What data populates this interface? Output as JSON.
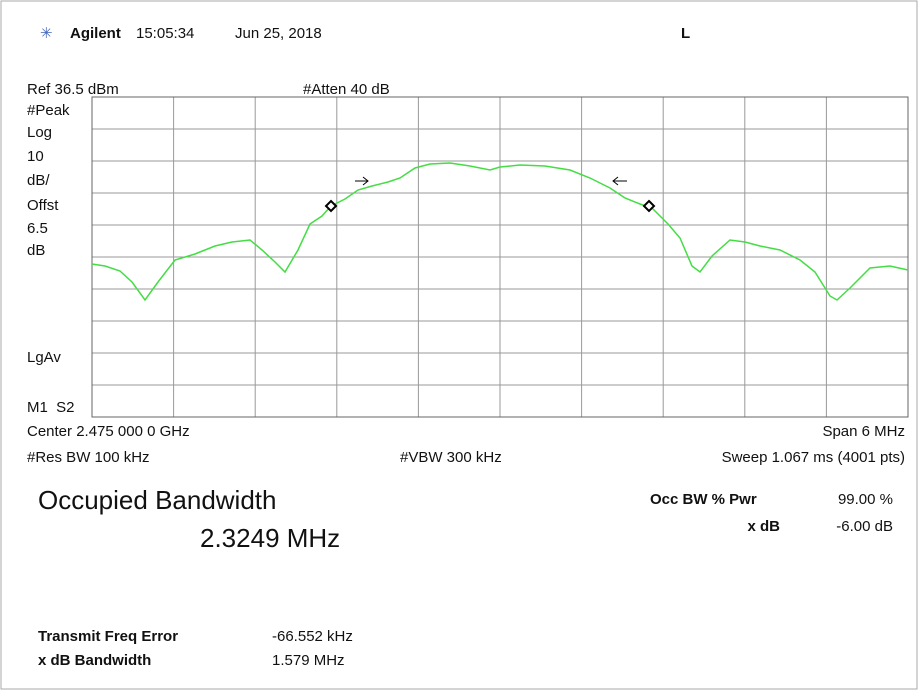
{
  "header": {
    "brand": "Agilent",
    "time": "15:05:34",
    "date": "Jun 25, 2018",
    "mode": "L"
  },
  "display": {
    "ref": "Ref 36.5 dBm",
    "atten": "#Atten 40 dB",
    "left_labels": [
      "#Peak",
      "Log",
      "10",
      "dB/",
      "Offst",
      "6.5",
      "dB"
    ],
    "lgav": "LgAv",
    "markers": "M1  S2",
    "center": "Center 2.475 000 0 GHz",
    "span": "Span 6 MHz",
    "res_bw": "#Res BW 100 kHz",
    "vbw": "#VBW 300 kHz",
    "sweep": "Sweep 1.067 ms (4001 pts)"
  },
  "result": {
    "title": "Occupied Bandwidth",
    "value": "2.3249 MHz",
    "occ_label": "Occ BW % Pwr",
    "occ_value": "99.00 %",
    "xdb_label": "x dB",
    "xdb_value": "-6.00 dB"
  },
  "footer": {
    "rows": [
      [
        "Transmit Freq Error",
        "-66.552 kHz"
      ],
      [
        "x dB Bandwidth",
        "1.579 MHz"
      ]
    ]
  }
}
